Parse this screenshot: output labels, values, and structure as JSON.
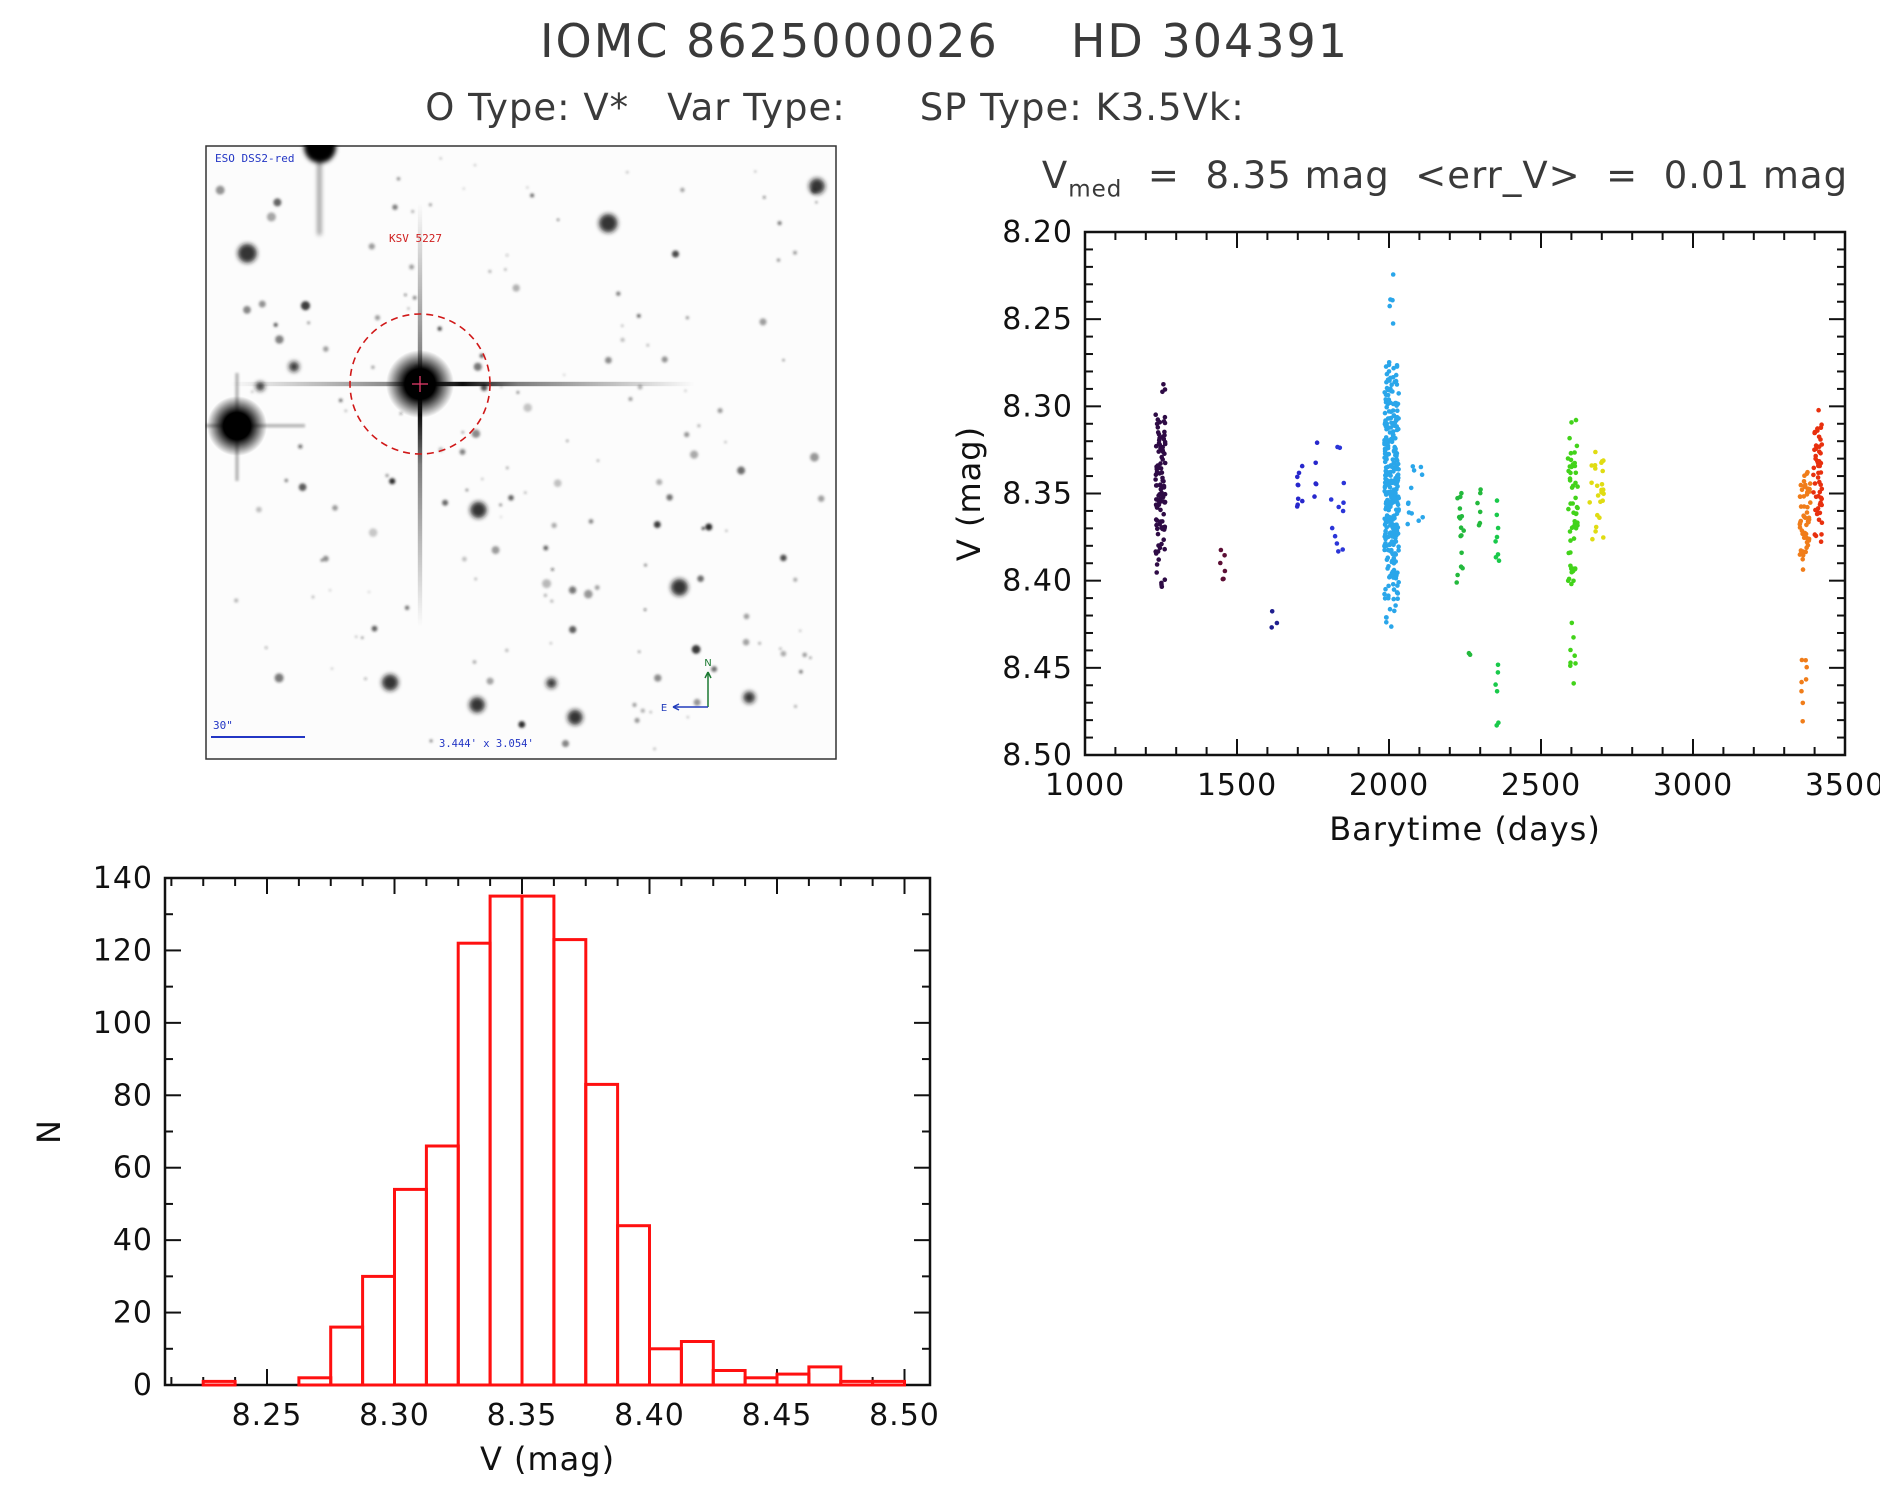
{
  "header": {
    "title_left": "IOMC 8625000026",
    "title_right": "HD 304391",
    "obj_type": "O Type: V*",
    "var_type": "Var Type:",
    "sp_type": "SP Type: K3.5Vk:"
  },
  "finder": {
    "survey_label": "ESO DSS2-red",
    "target_label": "KSV 5227",
    "scale_label": "30\"",
    "fov_label": "3.444' x 3.054'",
    "compass_north": "N",
    "compass_east": "E",
    "marker_color": "#d01818"
  },
  "lightcurve_title": {
    "pre": "V",
    "sub": "med",
    "post": "  =  8.35 mag  <err_V>  =  0.01 mag"
  },
  "chart_data": [
    {
      "type": "scatter",
      "name": "lightcurve",
      "title": "V_med = 8.35 mag <err_V> = 0.01 mag",
      "xlabel": "Barytime (days)",
      "ylabel": "V (mag)",
      "xlim": [
        1000,
        3500
      ],
      "ylim": [
        8.2,
        8.5
      ],
      "y_inverted": true,
      "xticks": [
        1000,
        1500,
        2000,
        2500,
        3000,
        3500
      ],
      "xtick_labels": [
        "1000",
        "1500",
        "2000",
        "2500",
        "3000",
        "3500"
      ],
      "yticks": [
        8.2,
        8.25,
        8.3,
        8.35,
        8.4,
        8.45,
        8.5
      ],
      "ytick_labels": [
        "8.20",
        "8.25",
        "8.30",
        "8.35",
        "8.40",
        "8.45",
        "8.50"
      ],
      "x_minor_step": 100,
      "y_minor_step": 0.01,
      "clusters": [
        {
          "x": [
            1232,
            1264
          ],
          "y": [
            8.28,
            8.41
          ],
          "n": 110,
          "color": "#2e0b45"
        },
        {
          "x": [
            1440,
            1462
          ],
          "y": [
            8.375,
            8.41
          ],
          "n": 6,
          "color": "#5c0f35"
        },
        {
          "x": [
            1612,
            1632
          ],
          "y": [
            8.415,
            8.43
          ],
          "n": 3,
          "color": "#20208f"
        },
        {
          "x": [
            1693,
            1716
          ],
          "y": [
            8.33,
            8.365
          ],
          "n": 9,
          "color": "#2727cc"
        },
        {
          "x": [
            1752,
            1772
          ],
          "y": [
            8.315,
            8.36
          ],
          "n": 5,
          "color": "#2727cc"
        },
        {
          "x": [
            1808,
            1852
          ],
          "y": [
            8.31,
            8.4
          ],
          "n": 12,
          "color": "#2b35d8"
        },
        {
          "x": [
            1985,
            2032
          ],
          "y": [
            8.265,
            8.43
          ],
          "n": 330,
          "color": "#2aa6ea"
        },
        {
          "x": [
            1998,
            2014
          ],
          "y": [
            8.222,
            8.262
          ],
          "n": 5,
          "color": "#2aa6ea"
        },
        {
          "x": [
            2058,
            2112
          ],
          "y": [
            8.33,
            8.375
          ],
          "n": 12,
          "color": "#2aa6ea"
        },
        {
          "x": [
            2218,
            2247
          ],
          "y": [
            8.335,
            8.415
          ],
          "n": 16,
          "color": "#23b93c"
        },
        {
          "x": [
            2262,
            2268
          ],
          "y": [
            8.44,
            8.45
          ],
          "n": 2,
          "color": "#23b93c"
        },
        {
          "x": [
            2284,
            2302
          ],
          "y": [
            8.34,
            8.375
          ],
          "n": 6,
          "color": "#23b93c"
        },
        {
          "x": [
            2344,
            2362
          ],
          "y": [
            8.335,
            8.405
          ],
          "n": 8,
          "color": "#19c94a"
        },
        {
          "x": [
            2350,
            2360
          ],
          "y": [
            8.43,
            8.497
          ],
          "n": 6,
          "color": "#19c94a"
        },
        {
          "x": [
            2588,
            2622
          ],
          "y": [
            8.3,
            8.415
          ],
          "n": 55,
          "color": "#42d31a"
        },
        {
          "x": [
            2595,
            2615
          ],
          "y": [
            8.42,
            8.465
          ],
          "n": 8,
          "color": "#42d31a"
        },
        {
          "x": [
            2648,
            2706
          ],
          "y": [
            8.315,
            8.385
          ],
          "n": 26,
          "color": "#e0dc12"
        },
        {
          "x": [
            3348,
            3386
          ],
          "y": [
            8.33,
            8.4
          ],
          "n": 55,
          "color": "#f07d1a"
        },
        {
          "x": [
            3356,
            3376
          ],
          "y": [
            8.41,
            8.485
          ],
          "n": 8,
          "color": "#f07d1a"
        },
        {
          "x": [
            3396,
            3424
          ],
          "y": [
            8.295,
            8.385
          ],
          "n": 55,
          "color": "#e8300e"
        }
      ]
    },
    {
      "type": "bar",
      "name": "histogram",
      "xlabel": "V (mag)",
      "ylabel": "N",
      "xlim": [
        8.21,
        8.51
      ],
      "ylim": [
        0,
        140
      ],
      "xticks": [
        8.25,
        8.3,
        8.35,
        8.4,
        8.45,
        8.5
      ],
      "xtick_labels": [
        "8.25",
        "8.30",
        "8.35",
        "8.40",
        "8.45",
        "8.50"
      ],
      "yticks": [
        0,
        20,
        40,
        60,
        80,
        100,
        120,
        140
      ],
      "ytick_labels": [
        "0",
        "20",
        "40",
        "60",
        "80",
        "100",
        "120",
        "140"
      ],
      "x_minor_step": 0.0125,
      "y_minor_step": 10,
      "bin_start": 8.225,
      "bin_width": 0.0125,
      "counts": [
        1,
        0,
        0,
        2,
        16,
        30,
        54,
        66,
        122,
        135,
        135,
        123,
        83,
        44,
        10,
        12,
        4,
        2,
        3,
        5,
        1,
        1
      ],
      "bar_color": "#ff1010"
    }
  ]
}
